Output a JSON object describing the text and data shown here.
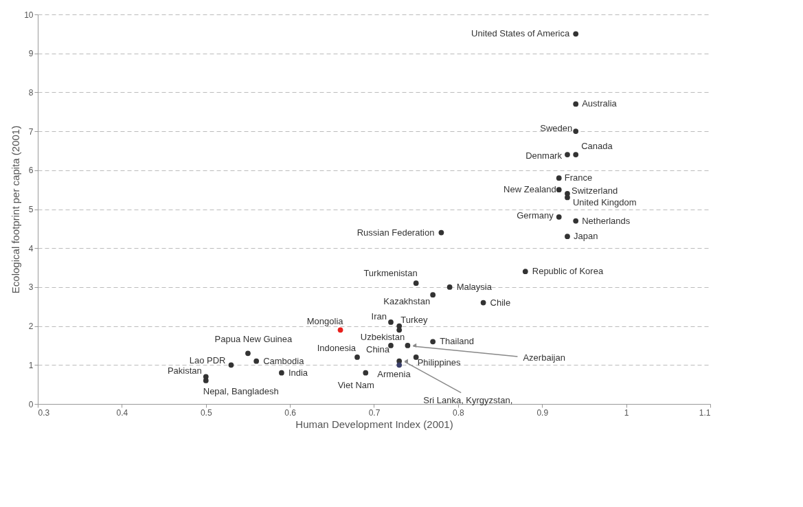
{
  "chart_data": {
    "type": "scatter",
    "xlabel": "Human Development Index (2001)",
    "ylabel": "Ecological footprint per capita (2001)",
    "xlim": [
      0.3,
      1.1
    ],
    "xticks": [
      0.3,
      0.4,
      0.5,
      0.6,
      0.7,
      0.8,
      0.9,
      1,
      1.1
    ],
    "ylim": [
      0,
      10
    ],
    "yticks": [
      0,
      1,
      2,
      3,
      4,
      5,
      6,
      7,
      8,
      9,
      10
    ],
    "grid": "y",
    "marker": "circle",
    "x": [
      0.94,
      0.94,
      0.94,
      0.94,
      0.93,
      0.92,
      0.92,
      0.93,
      0.93,
      0.92,
      0.94,
      0.93,
      0.78,
      0.88,
      0.75,
      0.79,
      0.77,
      0.83,
      0.72,
      0.73,
      0.66,
      0.77,
      0.72,
      0.74,
      0.68,
      0.75,
      0.73,
      0.73,
      0.69,
      0.55,
      0.56,
      0.53,
      0.5,
      0.5,
      0.59,
      0.73
    ],
    "values": [
      9.5,
      7.7,
      7.0,
      6.4,
      6.4,
      5.8,
      5.5,
      5.4,
      5.3,
      4.8,
      4.7,
      4.3,
      4.4,
      3.4,
      3.1,
      3.0,
      2.8,
      2.6,
      2.1,
      2.0,
      1.9,
      1.6,
      1.5,
      1.5,
      1.2,
      1.2,
      1.1,
      1.0,
      0.8,
      1.3,
      1.1,
      1.0,
      0.7,
      0.6,
      0.8,
      1.9
    ],
    "colors": [
      "#333333",
      "#333333",
      "#333333",
      "#333333",
      "#333333",
      "#333333",
      "#333333",
      "#333333",
      "#333333",
      "#333333",
      "#333333",
      "#333333",
      "#333333",
      "#333333",
      "#333333",
      "#333333",
      "#333333",
      "#333333",
      "#333333",
      "#333333",
      "#e8201c",
      "#333333",
      "#333333",
      "#333333",
      "#333333",
      "#333333",
      "#333333",
      "#3a3f6a",
      "#333333",
      "#333333",
      "#333333",
      "#333333",
      "#333333",
      "#333333",
      "#333333",
      "#333333"
    ],
    "annotations": [
      {
        "text": "United States of America",
        "x": 0.94,
        "y": 9.5
      },
      {
        "text": "Australia",
        "x": 0.94,
        "y": 7.7
      },
      {
        "text": "Sweden",
        "x": 0.94,
        "y": 7.0
      },
      {
        "text": "Canada",
        "x": 0.94,
        "y": 6.4
      },
      {
        "text": "Denmark",
        "x": 0.93,
        "y": 6.4
      },
      {
        "text": "France",
        "x": 0.92,
        "y": 5.8
      },
      {
        "text": "New Zealand",
        "x": 0.92,
        "y": 5.5
      },
      {
        "text": "Switzerland",
        "x": 0.93,
        "y": 5.4
      },
      {
        "text": "United Kingdom",
        "x": 0.93,
        "y": 5.3
      },
      {
        "text": "Germany",
        "x": 0.92,
        "y": 4.8
      },
      {
        "text": "Netherlands",
        "x": 0.94,
        "y": 4.7
      },
      {
        "text": "Japan",
        "x": 0.93,
        "y": 4.3
      },
      {
        "text": "Russian Federation",
        "x": 0.78,
        "y": 4.4
      },
      {
        "text": "Republic of Korea",
        "x": 0.88,
        "y": 3.4
      },
      {
        "text": "Turkmenistan",
        "x": 0.75,
        "y": 3.1
      },
      {
        "text": "Malaysia",
        "x": 0.79,
        "y": 3.0
      },
      {
        "text": "Kazakhstan",
        "x": 0.77,
        "y": 2.8
      },
      {
        "text": "Chile",
        "x": 0.83,
        "y": 2.6
      },
      {
        "text": "Iran",
        "x": 0.72,
        "y": 2.1
      },
      {
        "text": "Turkey",
        "x": 0.73,
        "y": 2.0
      },
      {
        "text": "Mongolia",
        "x": 0.66,
        "y": 1.9
      },
      {
        "text": "Thailand",
        "x": 0.77,
        "y": 1.6
      },
      {
        "text": "Uzbekistan",
        "x": 0.72,
        "y": 1.5
      },
      {
        "text": "China",
        "x": 0.72,
        "y": 1.5
      },
      {
        "text": "Azerbaijan",
        "x": 0.74,
        "y": 1.5
      },
      {
        "text": "Indonesia",
        "x": 0.68,
        "y": 1.2
      },
      {
        "text": "Philippines",
        "x": 0.75,
        "y": 1.2
      },
      {
        "text": "Sri Lanka, Kyrgyzstan,",
        "x": 0.73,
        "y": 1.1
      },
      {
        "text": "Armenia",
        "x": 0.73,
        "y": 1.0
      },
      {
        "text": "Viet Nam",
        "x": 0.69,
        "y": 0.8
      },
      {
        "text": "Papua New Guinea",
        "x": 0.55,
        "y": 1.3
      },
      {
        "text": "Cambodia",
        "x": 0.56,
        "y": 1.1
      },
      {
        "text": "Lao PDR",
        "x": 0.53,
        "y": 1.0
      },
      {
        "text": "Pakistan",
        "x": 0.5,
        "y": 0.7
      },
      {
        "text": "Nepal, Bangladesh",
        "x": 0.5,
        "y": 0.6
      },
      {
        "text": "India",
        "x": 0.59,
        "y": 0.8
      }
    ]
  }
}
